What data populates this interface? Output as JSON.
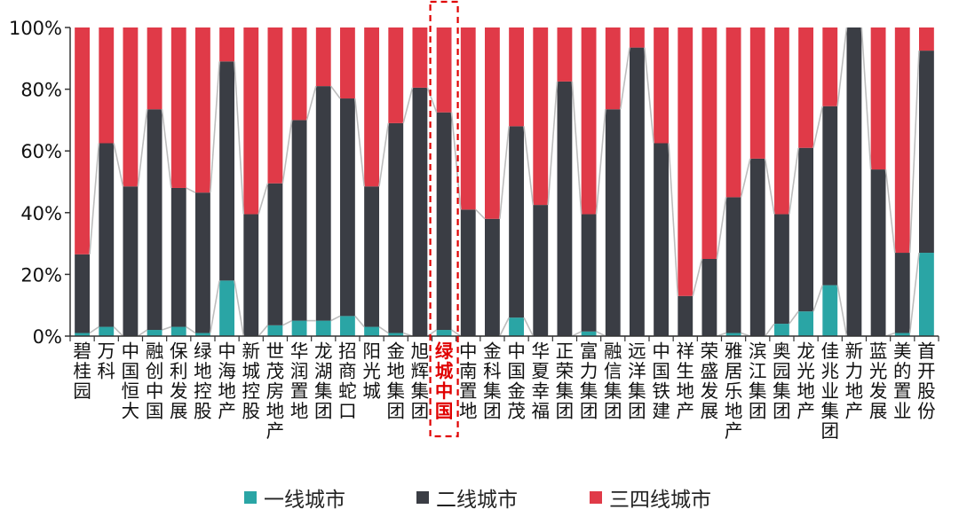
{
  "chart_data": {
    "type": "bar",
    "stacked": true,
    "normalized": true,
    "highlight": "绿城中国",
    "y_ticks": [
      "0%",
      "20%",
      "40%",
      "60%",
      "80%",
      "100%"
    ],
    "ylim": [
      0,
      100
    ],
    "colors": {
      "tier1": "#2aa5a5",
      "tier2": "#3a3d44",
      "tier34": "#e03a48",
      "highlight": "#e00000",
      "connector": "#bdbdbd"
    },
    "categories": [
      "碧桂园",
      "万科",
      "中国恒大",
      "融创中国",
      "保利发展",
      "绿地控股",
      "中海地产",
      "新城控股",
      "世茂房地产",
      "华润置地",
      "龙湖集团",
      "招商蛇口",
      "阳光城",
      "金地集团",
      "旭辉集团",
      "绿城中国",
      "中南置地",
      "金科集团",
      "中国金茂",
      "华夏幸福",
      "正荣集团",
      "富力集团",
      "融信集团",
      "远洋集团",
      "中国铁建",
      "祥生地产",
      "荣盛发展",
      "雅居乐地产",
      "滨江集团",
      "奥园集团",
      "龙光地产",
      "佳兆业集团",
      "新力地产",
      "蓝光发展",
      "美的置业",
      "首开股份"
    ],
    "series": [
      {
        "name": "一线城市",
        "values": [
          1,
          3,
          0,
          2,
          3,
          1,
          18,
          0,
          3.5,
          5,
          5,
          6.5,
          3,
          1,
          0,
          2,
          0,
          0,
          6,
          0,
          0,
          1.5,
          0,
          0,
          0,
          0,
          0,
          1,
          0,
          4,
          8,
          16.5,
          0,
          0,
          1,
          27
        ]
      },
      {
        "name": "二线城市",
        "values": [
          25.5,
          59.5,
          48.5,
          71.5,
          45,
          45.5,
          71,
          39.5,
          46,
          65,
          76,
          70.5,
          45.5,
          68,
          80.5,
          70.5,
          41,
          38,
          62,
          42.5,
          82.5,
          38,
          73.5,
          93.5,
          62.5,
          13,
          25,
          44,
          57.5,
          35.5,
          53,
          58,
          100,
          54,
          26,
          65.5
        ]
      },
      {
        "name": "三四线城市",
        "values": [
          73.5,
          37.5,
          51.5,
          26.5,
          52,
          53.5,
          11,
          60.5,
          50.5,
          30,
          19,
          23,
          51.5,
          31,
          19.5,
          27.5,
          59,
          62,
          32,
          57.5,
          17.5,
          60.5,
          26.5,
          6.5,
          37.5,
          87,
          75,
          55,
          42.5,
          60.5,
          39,
          25.5,
          0,
          46,
          73,
          7.5
        ]
      }
    ]
  }
}
